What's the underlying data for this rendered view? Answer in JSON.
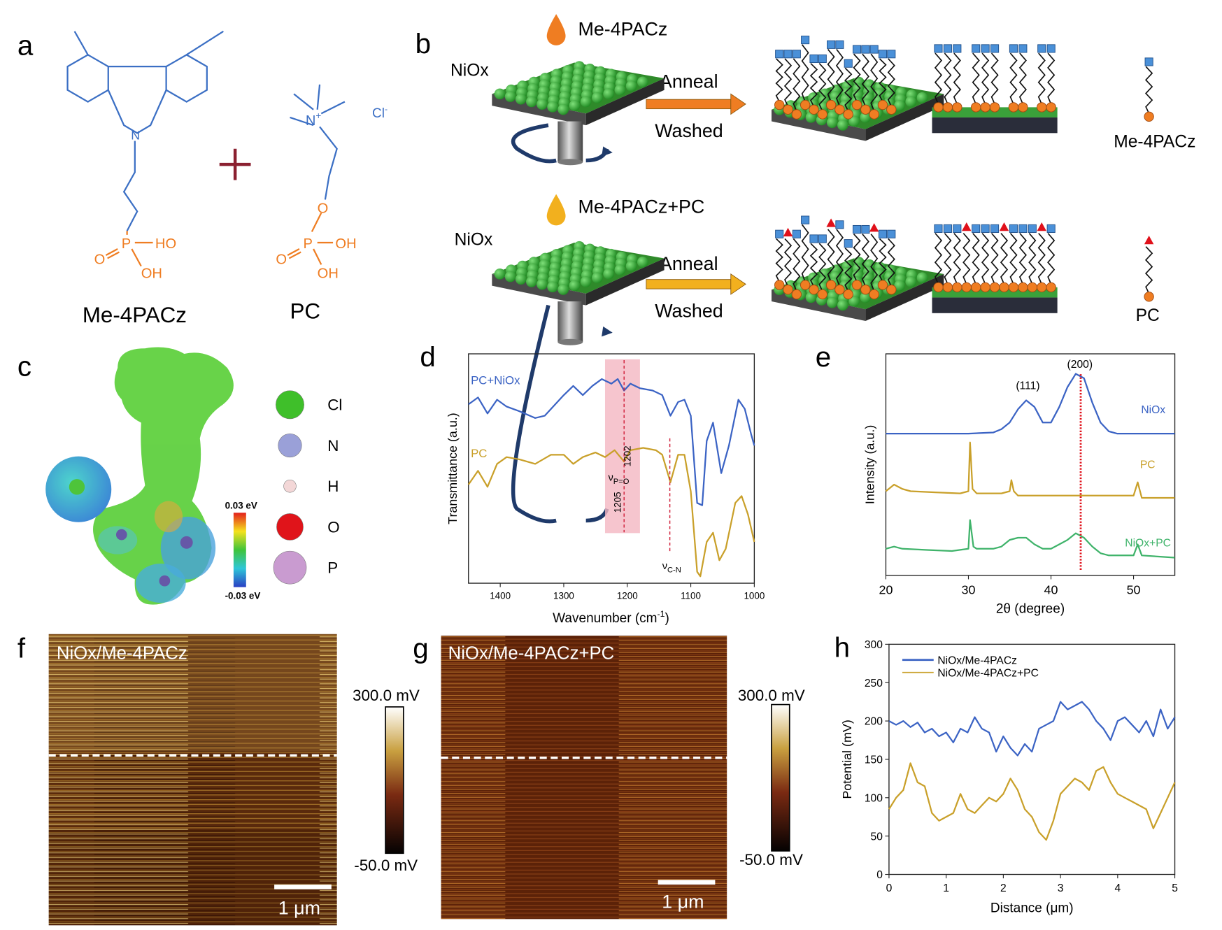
{
  "panels": {
    "a": {
      "label": "a",
      "molecule1_name": "Me-4PACz",
      "molecule2_name": "PC",
      "atoms": {
        "N": "N",
        "P": "P",
        "O": "O",
        "HO": "HO",
        "OH": "OH",
        "N_plus": "N",
        "plus_sup": "+",
        "chloride": "Cl",
        "minus_sup": "-"
      },
      "colors": {
        "carbazole": "#3b6fc4",
        "phosphonic": "#ef7d22",
        "plus_sign": "#8b2030"
      }
    },
    "b": {
      "label": "b",
      "row1": {
        "solution": "Me-4PACz",
        "substrate": "NiOx",
        "step1": "Anneal",
        "step2": "Washed",
        "molecule": "Me-4PACz",
        "drop_color": "#ef7d22",
        "arrow_color": "#ef7d22"
      },
      "row2": {
        "solution": "Me-4PACz+PC",
        "substrate": "NiOx",
        "step1": "Anneal",
        "step2": "Washed",
        "molecule": "PC",
        "drop_color": "#f2b01e",
        "arrow_color": "#f2b01e"
      }
    },
    "c": {
      "label": "c",
      "scale_max": "0.03 eV",
      "scale_min": "-0.03 eV",
      "legend": [
        {
          "symbol": "Cl",
          "color": "#3fbf2a"
        },
        {
          "symbol": "N",
          "color": "#9aa0d8"
        },
        {
          "symbol": "H",
          "color": "#f3d7d7"
        },
        {
          "symbol": "O",
          "color": "#e0141a"
        },
        {
          "symbol": "P",
          "color": "#c99bd0"
        }
      ]
    },
    "f": {
      "label": "f",
      "title": "NiOx/Me-4PACz",
      "scale_max": "300.0 mV",
      "scale_min": "-50.0 mV",
      "scale_bar": "1 μm"
    },
    "g": {
      "label": "g",
      "title": "NiOx/Me-4PACz+PC",
      "scale_max": "300.0 mV",
      "scale_min": "-50.0 mV",
      "scale_bar": "1 μm"
    }
  },
  "chart_data": [
    {
      "panel": "d",
      "label": "d",
      "type": "line",
      "xlabel": "Wavenumber (cm-1)",
      "xlabel_main": "Wavenumber (cm",
      "xlabel_sup": "-1",
      "xlabel_end": ")",
      "ylabel": "Transmittance (a.u.)",
      "xlim": [
        1450,
        1000
      ],
      "ylim": [
        0,
        10
      ],
      "xticks": [
        1400,
        1300,
        1200,
        1100,
        1000
      ],
      "grid": false,
      "annotations": {
        "band_1202": "1202",
        "band_1205": "1205",
        "nu": "ν",
        "pO": "P=O",
        "cN": "C-N",
        "highlight_range": [
          1235,
          1180
        ],
        "lines": [
          1205,
          1133
        ]
      },
      "series": [
        {
          "name": "PC+NiOx",
          "color": "#3b63c4",
          "x": [
            1450,
            1435,
            1420,
            1405,
            1390,
            1370,
            1345,
            1330,
            1300,
            1285,
            1270,
            1255,
            1240,
            1225,
            1215,
            1205,
            1195,
            1180,
            1160,
            1145,
            1132,
            1120,
            1110,
            1100,
            1090,
            1082,
            1075,
            1065,
            1052,
            1040,
            1025,
            1015,
            1005,
            1000
          ],
          "y": [
            7.8,
            8.1,
            7.4,
            8.0,
            7.7,
            7.5,
            7.2,
            7.3,
            8.2,
            8.6,
            8.2,
            8.6,
            8.9,
            8.7,
            8.9,
            8.4,
            8.7,
            8.5,
            8.4,
            8.2,
            7.3,
            7.9,
            8.0,
            7.3,
            3.5,
            3.4,
            6.2,
            7.0,
            4.8,
            6.0,
            8.0,
            7.6,
            6.5,
            6.0
          ]
        },
        {
          "name": "PC",
          "color": "#c9a02a",
          "x": [
            1450,
            1435,
            1420,
            1405,
            1390,
            1370,
            1345,
            1320,
            1300,
            1285,
            1270,
            1250,
            1235,
            1220,
            1205,
            1195,
            1175,
            1155,
            1145,
            1132,
            1120,
            1110,
            1100,
            1090,
            1085,
            1075,
            1065,
            1055,
            1045,
            1030,
            1020,
            1010,
            1000
          ],
          "y": [
            4.3,
            4.9,
            4.2,
            5.2,
            5.5,
            5.4,
            5.2,
            5.6,
            5.6,
            5.2,
            5.5,
            5.7,
            5.5,
            5.8,
            5.3,
            5.8,
            5.9,
            5.8,
            5.6,
            4.4,
            5.6,
            5.6,
            4.0,
            0.5,
            0.3,
            1.8,
            2.2,
            1.0,
            1.5,
            3.5,
            3.8,
            3.0,
            1.8
          ]
        }
      ]
    },
    {
      "panel": "e",
      "label": "e",
      "type": "line",
      "xlabel": "2θ (degree)",
      "ylabel": "Intensity (a.u.)",
      "xlim": [
        20,
        55
      ],
      "ylim": [
        0,
        10
      ],
      "xticks": [
        20,
        30,
        40,
        50
      ],
      "grid": false,
      "annotations": {
        "peak_111": "(111)",
        "peak_200": "(200)",
        "line_x": 43.6
      },
      "series": [
        {
          "name": "NiOx",
          "color": "#3b63c4",
          "x": [
            20,
            25,
            30,
            33,
            34,
            35,
            36,
            37,
            38,
            39,
            40,
            41,
            42,
            43,
            44,
            45,
            46,
            47,
            48,
            55
          ],
          "y": [
            6.4,
            6.4,
            6.4,
            6.45,
            6.6,
            6.9,
            7.5,
            7.9,
            7.6,
            6.9,
            6.9,
            7.6,
            8.5,
            9.1,
            8.9,
            7.8,
            6.9,
            6.5,
            6.4,
            6.4
          ]
        },
        {
          "name": "PC",
          "color": "#c9a02a",
          "x": [
            20,
            21,
            22,
            23,
            26,
            29,
            30,
            30.2,
            30.5,
            31,
            34,
            35,
            35.2,
            35.5,
            36,
            40,
            45,
            50,
            50.5,
            51,
            55
          ],
          "y": [
            3.8,
            4.1,
            3.9,
            3.8,
            3.75,
            3.7,
            3.8,
            6.0,
            3.9,
            3.7,
            3.7,
            3.8,
            4.3,
            3.8,
            3.6,
            3.6,
            3.6,
            3.6,
            4.2,
            3.5,
            3.5
          ]
        },
        {
          "name": "NiOx+PC",
          "color": "#3fb36a",
          "x": [
            20,
            21,
            22,
            25,
            28,
            30,
            30.2,
            30.6,
            31,
            33,
            34,
            35,
            36,
            37,
            38,
            39,
            40,
            41,
            42,
            43,
            44,
            45,
            46,
            47,
            50,
            50.5,
            51,
            55
          ],
          "y": [
            1.2,
            1.3,
            1.2,
            1.15,
            1.1,
            1.2,
            2.5,
            1.3,
            1.2,
            1.2,
            1.3,
            1.6,
            1.7,
            1.7,
            1.4,
            1.2,
            1.2,
            1.4,
            1.6,
            1.9,
            1.7,
            1.3,
            1.0,
            0.9,
            0.9,
            1.4,
            0.9,
            0.8
          ]
        }
      ]
    },
    {
      "panel": "h",
      "label": "h",
      "type": "line",
      "xlabel": "Distance (μm)",
      "ylabel": "Potential (mV)",
      "xlim": [
        0,
        5
      ],
      "ylim": [
        0,
        300
      ],
      "xticks": [
        0,
        1,
        2,
        3,
        4,
        5
      ],
      "yticks": [
        0,
        50,
        100,
        150,
        200,
        250,
        300
      ],
      "grid": false,
      "legend": "top-left",
      "series": [
        {
          "name": "NiOx/Me-4PACz",
          "color": "#3b63c4",
          "x": [
            0,
            0.125,
            0.25,
            0.375,
            0.5,
            0.625,
            0.75,
            0.875,
            1.0,
            1.125,
            1.25,
            1.375,
            1.5,
            1.625,
            1.75,
            1.875,
            2.0,
            2.125,
            2.25,
            2.375,
            2.5,
            2.625,
            2.75,
            2.875,
            3.0,
            3.125,
            3.25,
            3.375,
            3.5,
            3.625,
            3.75,
            3.875,
            4.0,
            4.125,
            4.25,
            4.375,
            4.5,
            4.625,
            4.75,
            4.875,
            5.0
          ],
          "y": [
            200,
            195,
            200,
            192,
            198,
            185,
            190,
            180,
            185,
            172,
            190,
            185,
            205,
            190,
            185,
            160,
            180,
            165,
            155,
            170,
            160,
            190,
            195,
            200,
            225,
            215,
            220,
            225,
            215,
            200,
            190,
            175,
            200,
            205,
            195,
            185,
            200,
            180,
            215,
            190,
            205
          ]
        },
        {
          "name": "NiOx/Me-4PACz+PC",
          "color": "#c9a02a",
          "x": [
            0,
            0.125,
            0.25,
            0.375,
            0.5,
            0.625,
            0.75,
            0.875,
            1.0,
            1.125,
            1.25,
            1.375,
            1.5,
            1.625,
            1.75,
            1.875,
            2.0,
            2.125,
            2.25,
            2.375,
            2.5,
            2.625,
            2.75,
            2.875,
            3.0,
            3.125,
            3.25,
            3.375,
            3.5,
            3.625,
            3.75,
            3.875,
            4.0,
            4.125,
            4.25,
            4.375,
            4.5,
            4.625,
            4.75,
            4.875,
            5.0
          ],
          "y": [
            85,
            100,
            110,
            145,
            120,
            115,
            80,
            70,
            75,
            80,
            105,
            85,
            80,
            90,
            100,
            95,
            105,
            125,
            110,
            85,
            75,
            55,
            45,
            70,
            105,
            115,
            125,
            120,
            110,
            135,
            140,
            120,
            105,
            100,
            95,
            90,
            85,
            60,
            80,
            100,
            120
          ]
        }
      ]
    }
  ]
}
